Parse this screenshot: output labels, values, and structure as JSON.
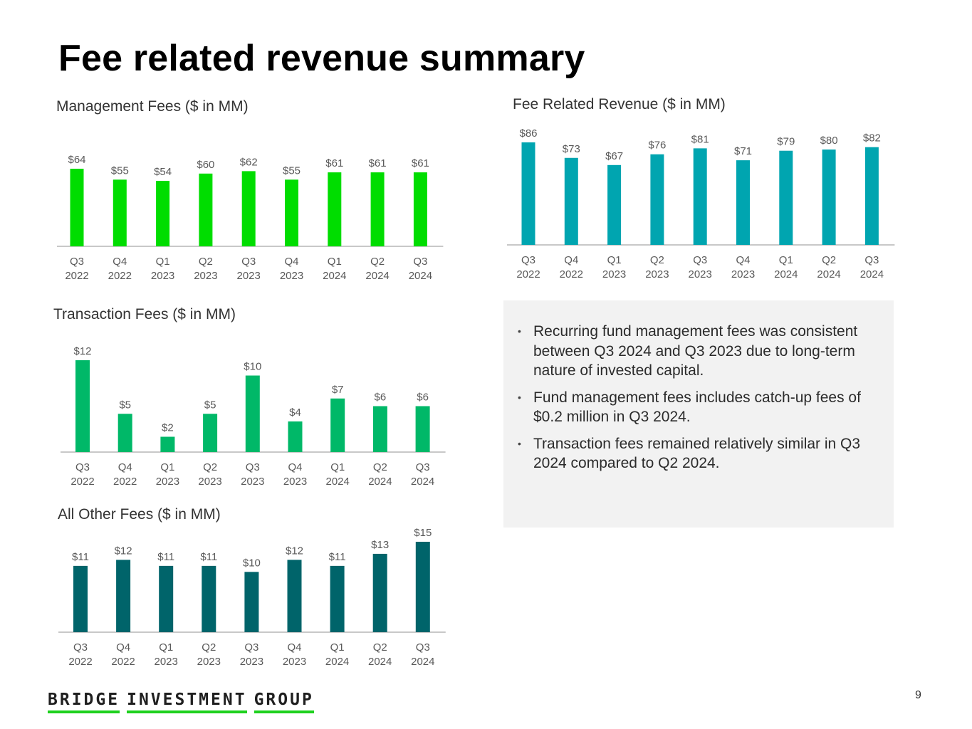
{
  "page": {
    "title": "Fee related revenue summary",
    "page_number": "9",
    "logo_words": [
      "BRIDGE",
      "INVESTMENT",
      "GROUP"
    ]
  },
  "notes": [
    "Recurring fund management fees was consistent between Q3 2024 and Q3 2023 due to long-term nature of invested capital.",
    "Fund management fees includes catch-up fees of $0.2 million in Q3 2024.",
    "Transaction fees remained relatively similar in Q3 2024 compared to Q2 2024."
  ],
  "colors": {
    "management": "#00dd00",
    "fee_related": "#00a5b0",
    "transaction": "#00b868",
    "other": "#00646a",
    "axis": "#a6a6a6",
    "logo_accent": "#1ed11e"
  },
  "chart_data": [
    {
      "type": "bar",
      "title": "Management Fees ($ in MM)",
      "categories": [
        [
          "Q3",
          "2022"
        ],
        [
          "Q4",
          "2022"
        ],
        [
          "Q1",
          "2023"
        ],
        [
          "Q2",
          "2023"
        ],
        [
          "Q3",
          "2023"
        ],
        [
          "Q4",
          "2023"
        ],
        [
          "Q1",
          "2024"
        ],
        [
          "Q2",
          "2024"
        ],
        [
          "Q3",
          "2024"
        ]
      ],
      "values": [
        64,
        55,
        54,
        60,
        62,
        55,
        61,
        61,
        61
      ],
      "labels": [
        "$64",
        "$55",
        "$54",
        "$60",
        "$62",
        "$55",
        "$61",
        "$61",
        "$61"
      ],
      "xlabel": "",
      "ylabel": "",
      "color": "#00dd00"
    },
    {
      "type": "bar",
      "title": "Fee Related Revenue ($ in MM)",
      "categories": [
        [
          "Q3",
          "2022"
        ],
        [
          "Q4",
          "2022"
        ],
        [
          "Q1",
          "2023"
        ],
        [
          "Q2",
          "2023"
        ],
        [
          "Q3",
          "2023"
        ],
        [
          "Q4",
          "2023"
        ],
        [
          "Q1",
          "2024"
        ],
        [
          "Q2",
          "2024"
        ],
        [
          "Q3",
          "2024"
        ]
      ],
      "values": [
        86,
        73,
        67,
        76,
        81,
        71,
        79,
        80,
        82
      ],
      "labels": [
        "$86",
        "$73",
        "$67",
        "$76",
        "$81",
        "$71",
        "$79",
        "$80",
        "$82"
      ],
      "xlabel": "",
      "ylabel": "",
      "color": "#00a5b0"
    },
    {
      "type": "bar",
      "title": "Transaction Fees ($ in MM)",
      "categories": [
        [
          "Q3",
          "2022"
        ],
        [
          "Q4",
          "2022"
        ],
        [
          "Q1",
          "2023"
        ],
        [
          "Q2",
          "2023"
        ],
        [
          "Q3",
          "2023"
        ],
        [
          "Q4",
          "2023"
        ],
        [
          "Q1",
          "2024"
        ],
        [
          "Q2",
          "2024"
        ],
        [
          "Q3",
          "2024"
        ]
      ],
      "values": [
        12,
        5,
        2,
        5,
        10,
        4,
        7,
        6,
        6
      ],
      "labels": [
        "$12",
        "$5",
        "$2",
        "$5",
        "$10",
        "$4",
        "$7",
        "$6",
        "$6"
      ],
      "xlabel": "",
      "ylabel": "",
      "color": "#00b868"
    },
    {
      "type": "bar",
      "title": "All Other Fees ($ in MM)",
      "categories": [
        [
          "Q3",
          "2022"
        ],
        [
          "Q4",
          "2022"
        ],
        [
          "Q1",
          "2023"
        ],
        [
          "Q2",
          "2023"
        ],
        [
          "Q3",
          "2023"
        ],
        [
          "Q4",
          "2023"
        ],
        [
          "Q1",
          "2024"
        ],
        [
          "Q2",
          "2024"
        ],
        [
          "Q3",
          "2024"
        ]
      ],
      "values": [
        11,
        12,
        11,
        11,
        10,
        12,
        11,
        13,
        15
      ],
      "labels": [
        "$11",
        "$12",
        "$11",
        "$11",
        "$10",
        "$12",
        "$11",
        "$13",
        "$15"
      ],
      "xlabel": "",
      "ylabel": "",
      "color": "#00646a"
    }
  ]
}
